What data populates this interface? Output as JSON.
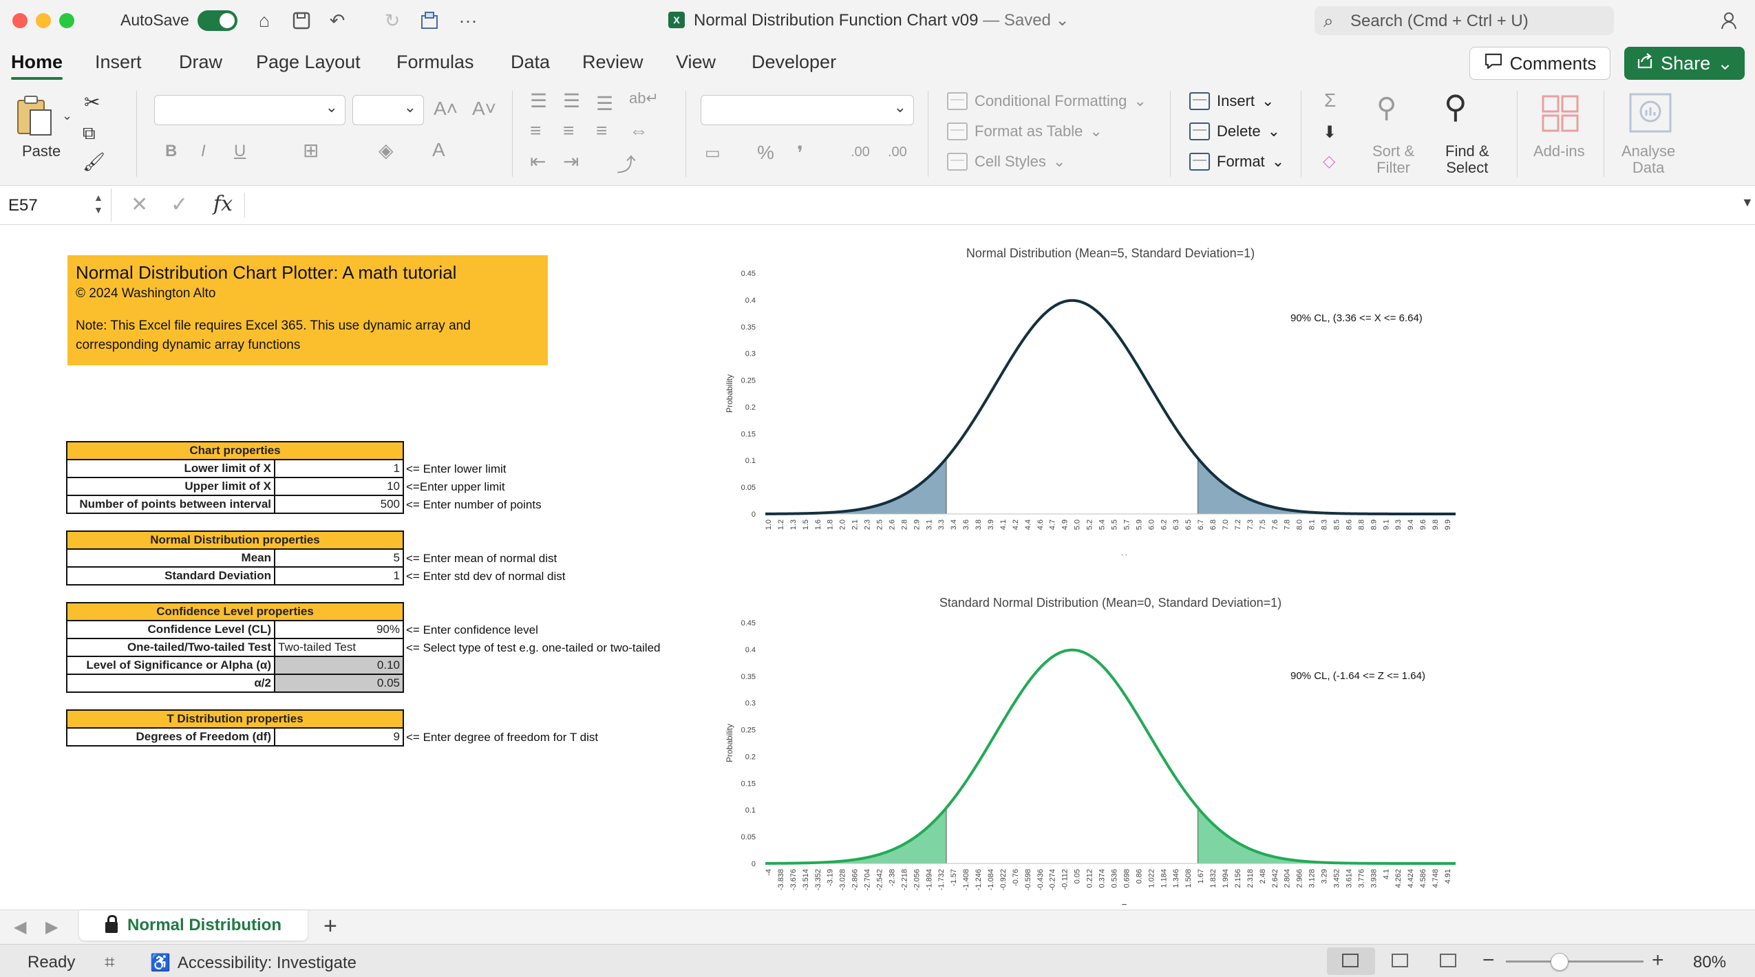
{
  "titlebar": {
    "autosave_label": "AutoSave",
    "doc_title": "Normal Distribution Function Chart v09",
    "doc_status": " — Saved",
    "search_placeholder": "Search (Cmd + Ctrl + U)"
  },
  "ribbon_tabs": [
    "Home",
    "Insert",
    "Draw",
    "Page Layout",
    "Formulas",
    "Data",
    "Review",
    "View",
    "Developer"
  ],
  "actions": {
    "comments": "Comments",
    "share": "Share"
  },
  "ribbon": {
    "paste": "Paste",
    "conditional_formatting": "Conditional Formatting",
    "format_as_table": "Format as Table",
    "cell_styles": "Cell Styles",
    "insert": "Insert",
    "delete": "Delete",
    "format": "Format",
    "sort_filter": "Sort &\nFilter",
    "find_select": "Find &\nSelect",
    "add_ins": "Add-ins",
    "analyse_data": "Analyse\nData",
    "percent": "%",
    "comma": "❜",
    "dec_inc": ".00",
    "dec_dec": ".00"
  },
  "formula_bar": {
    "name_box": "E57",
    "fx": "fx",
    "content": ""
  },
  "sheet": {
    "banner": {
      "title": "Normal Distribution Chart Plotter: A math tutorial",
      "copyright": "© 2024 Washington Alto",
      "note": "Note: This Excel file requires Excel 365. This use dynamic array and corresponding dynamic array functions"
    },
    "chart_props": {
      "header": "Chart properties",
      "rows": [
        {
          "label": "Lower limit of X",
          "value": "1",
          "note": "<= Enter lower limit"
        },
        {
          "label": "Upper limit of X",
          "value": "10",
          "note": "<=Enter upper limit"
        },
        {
          "label": "Number of points between interval",
          "value": "500",
          "note": "<= Enter number of points"
        }
      ]
    },
    "normal_props": {
      "header": "Normal Distribution properties",
      "rows": [
        {
          "label": "Mean",
          "value": "5",
          "note": "<= Enter mean of normal dist"
        },
        {
          "label": "Standard Deviation",
          "value": "1",
          "note": "<= Enter std dev of normal dist"
        }
      ]
    },
    "cl_props": {
      "header": "Confidence Level properties",
      "rows": [
        {
          "label": "Confidence Level (CL)",
          "value": "90%",
          "note": "<= Enter confidence level"
        },
        {
          "label": "One-tailed/Two-tailed Test",
          "value": "Two-tailed Test",
          "note": "<= Select type of test e.g. one-tailed or two-tailed"
        },
        {
          "label": "Level of Significance or Alpha (α)",
          "value": "0.10",
          "note": ""
        },
        {
          "label": "α/2",
          "value": "0.05",
          "note": ""
        }
      ]
    },
    "t_props": {
      "header": "T Distribution properties",
      "rows": [
        {
          "label": "Degrees of Freedom (df)",
          "value": "9",
          "note": "<= Enter degree of freedom for T dist"
        }
      ]
    }
  },
  "chart_data": [
    {
      "type": "area",
      "title": "Normal Distribution (Mean=5, Standard Deviation=1)",
      "xlabel": "X",
      "ylabel": "Probability",
      "mean": 5,
      "sd": 1,
      "xlim": [
        1,
        10
      ],
      "ylim": [
        0,
        0.45
      ],
      "yticks": [
        "0",
        "0.05",
        "0.1",
        "0.15",
        "0.2",
        "0.25",
        "0.3",
        "0.35",
        "0.4",
        "0.45"
      ],
      "xticks": [
        "1.0",
        "1.2",
        "1.3",
        "1.5",
        "1.6",
        "1.8",
        "2.0",
        "2.1",
        "2.3",
        "2.5",
        "2.6",
        "2.8",
        "2.9",
        "3.1",
        "3.3",
        "3.4",
        "3.6",
        "3.8",
        "3.9",
        "4.1",
        "4.2",
        "4.4",
        "4.6",
        "4.7",
        "4.9",
        "5.0",
        "5.2",
        "5.4",
        "5.5",
        "5.7",
        "5.9",
        "6.0",
        "6.2",
        "6.3",
        "6.5",
        "6.7",
        "6.8",
        "7.0",
        "7.2",
        "7.3",
        "7.5",
        "7.6",
        "7.8",
        "8.0",
        "8.1",
        "8.3",
        "8.5",
        "8.6",
        "8.8",
        "8.9",
        "9.1",
        "9.3",
        "9.4",
        "9.6",
        "9.8",
        "9.9"
      ],
      "shade_below": 3.36,
      "shade_above": 6.64,
      "annotation": "90% CL, (3.36 <= X <= 6.64)",
      "line_color": "#14303f",
      "fill_color": "#8aaabf"
    },
    {
      "type": "area",
      "title": "Standard Normal Distribution (Mean=0, Standard Deviation=1)",
      "xlabel": "Z",
      "ylabel": "Probability",
      "mean": 0,
      "sd": 1,
      "xlim": [
        -4,
        5
      ],
      "ylim": [
        0,
        0.45
      ],
      "yticks": [
        "0",
        "0.05",
        "0.1",
        "0.15",
        "0.2",
        "0.25",
        "0.3",
        "0.35",
        "0.4",
        "0.45"
      ],
      "xticks": [
        "-4",
        "-3.838",
        "-3.676",
        "-3.514",
        "-3.352",
        "-3.19",
        "-3.028",
        "-2.866",
        "-2.704",
        "-2.542",
        "-2.38",
        "-2.218",
        "-2.056",
        "-1.894",
        "-1.732",
        "-1.57",
        "-1.408",
        "-1.246",
        "-1.084",
        "-0.922",
        "-0.76",
        "-0.598",
        "-0.436",
        "-0.274",
        "-0.112",
        "0.05",
        "0.212",
        "0.374",
        "0.536",
        "0.698",
        "0.86",
        "1.022",
        "1.184",
        "1.346",
        "1.508",
        "1.67",
        "1.832",
        "1.994",
        "2.156",
        "2.318",
        "2.48",
        "2.642",
        "2.804",
        "2.966",
        "3.128",
        "3.29",
        "3.452",
        "3.614",
        "3.776",
        "3.938",
        "4.1",
        "4.262",
        "4.424",
        "4.586",
        "4.748",
        "4.91"
      ],
      "shade_below": -1.64,
      "shade_above": 1.64,
      "annotation": "90% CL, (-1.64 <= Z <= 1.64)",
      "line_color": "#22aa55",
      "fill_color": "#7fd4a3"
    }
  ],
  "sheet_tabs": {
    "active": "Normal Distribution",
    "add": "+"
  },
  "status": {
    "ready": "Ready",
    "accessibility": "Accessibility: Investigate",
    "zoom": "80%",
    "zoom_level_percent": 80
  }
}
